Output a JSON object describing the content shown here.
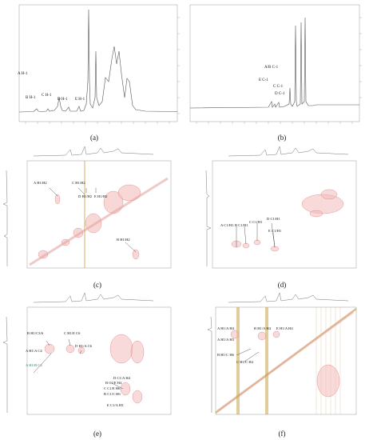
{
  "figure": {
    "panel_labels": [
      "(a)",
      "(b)",
      "(c)",
      "(d)",
      "(e)",
      "(f)"
    ],
    "panel_a": {
      "peak_labels": [
        "A H-1",
        "B H-1",
        "C H-1",
        "D H-1",
        "E H-1"
      ]
    },
    "panel_b": {
      "peak_labels": [
        "A/B C-1",
        "E C-1",
        "C C-1",
        "D C-1"
      ]
    },
    "panel_c": {
      "cross_peaks": [
        "A H1/H2",
        "C H1/H2",
        "D H1/H2",
        "E H1/H2",
        "B H1/H2"
      ]
    },
    "panel_d": {
      "cross_peaks": [
        "A C1/H1",
        "B C1/H1",
        "C C1/H1",
        "D C1/H1",
        "E C1/H1"
      ]
    },
    "panel_e": {
      "cross_peaks": [
        "B H1/C3/6",
        "C H1/E C6",
        "A H1/A C4",
        "A H1/B C4",
        "D H1/A C6",
        "D C1/A H4",
        "B C1/E H4",
        "C C1/E H6",
        "B C1/C H6",
        "E C1/A H3"
      ]
    },
    "panel_f": {
      "cross_peaks": [
        "A H1/A H4",
        "B H1/A H4",
        "E H1/A H4",
        "A H1/A H3",
        "B H1/C H6",
        "C H1/C H4"
      ]
    }
  }
}
